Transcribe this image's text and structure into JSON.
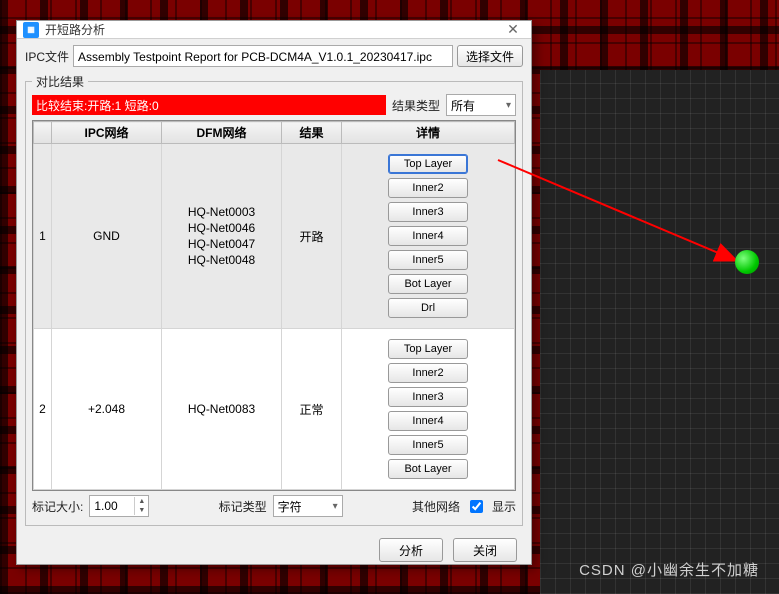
{
  "window": {
    "title": "开短路分析"
  },
  "ipc": {
    "label": "IPC文件",
    "value": "Assembly Testpoint Report for PCB-DCM4A_V1.0.1_20230417.ipc",
    "choose_btn": "选择文件"
  },
  "group": {
    "legend": "对比结果",
    "summary": "比较结束:开路:1 短路:0",
    "result_type_label": "结果类型",
    "result_type_value": "所有"
  },
  "table": {
    "headers": {
      "idx": "",
      "ipc": "IPC网络",
      "dfm": "DFM网络",
      "res": "结果",
      "det": "详情"
    },
    "rows": [
      {
        "idx": "1",
        "ipc": "GND",
        "dfm": [
          "HQ-Net0003",
          "HQ-Net0046",
          "HQ-Net0047",
          "HQ-Net0048"
        ],
        "res": "开路",
        "layers": [
          "Top Layer",
          "Inner2",
          "Inner3",
          "Inner4",
          "Inner5",
          "Bot Layer",
          "Drl"
        ],
        "active_layer": 0
      },
      {
        "idx": "2",
        "ipc": "+2.048",
        "dfm": [
          "HQ-Net0083"
        ],
        "res": "正常",
        "layers": [
          "Top Layer",
          "Inner2",
          "Inner3",
          "Inner4",
          "Inner5",
          "Bot Layer"
        ],
        "active_layer": -1
      }
    ]
  },
  "footer": {
    "mark_size_label": "标记大小:",
    "mark_size_value": "1.00",
    "mark_type_label": "标记类型",
    "mark_type_value": "字符",
    "other_net_label": "其他网络",
    "show_label": "显示",
    "analyze_btn": "分析",
    "close_btn": "关闭"
  },
  "watermark": "CSDN @小幽余生不加糖",
  "colors": {
    "summary_bg": "#ff0000",
    "arrow": "#ff0000",
    "dot": "#00d000"
  }
}
